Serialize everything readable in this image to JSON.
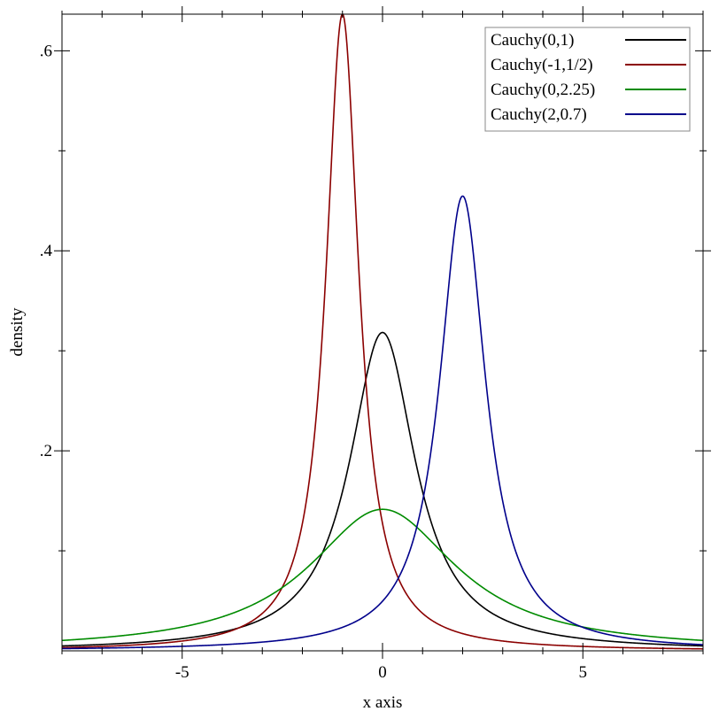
{
  "chart_data": {
    "type": "line",
    "xlabel": "x axis",
    "ylabel": "density",
    "xlim": [
      -8,
      8
    ],
    "ylim": [
      0,
      0.6366
    ],
    "x_ticks": [
      {
        "value": -5,
        "label": "-5"
      },
      {
        "value": 0,
        "label": "0"
      },
      {
        "value": 5,
        "label": "5"
      }
    ],
    "y_ticks": [
      {
        "value": 0.2,
        "label": ".2"
      },
      {
        "value": 0.4,
        "label": ".4"
      },
      {
        "value": 0.6,
        "label": ".6"
      }
    ],
    "x_minor_step": 1,
    "y_minor_step": 0.1,
    "grid": false,
    "legend_position": "top-right",
    "series": [
      {
        "name": "Cauchy(0,1)",
        "location": 0,
        "scale": 1,
        "color": "#000000"
      },
      {
        "name": "Cauchy(-1,1/2)",
        "location": -1,
        "scale": 0.5,
        "color": "#8b0000"
      },
      {
        "name": "Cauchy(0,2.25)",
        "location": 0,
        "scale": 2.25,
        "color": "#008b00"
      },
      {
        "name": "Cauchy(2,0.7)",
        "location": 2,
        "scale": 0.7,
        "color": "#00008b"
      }
    ]
  }
}
